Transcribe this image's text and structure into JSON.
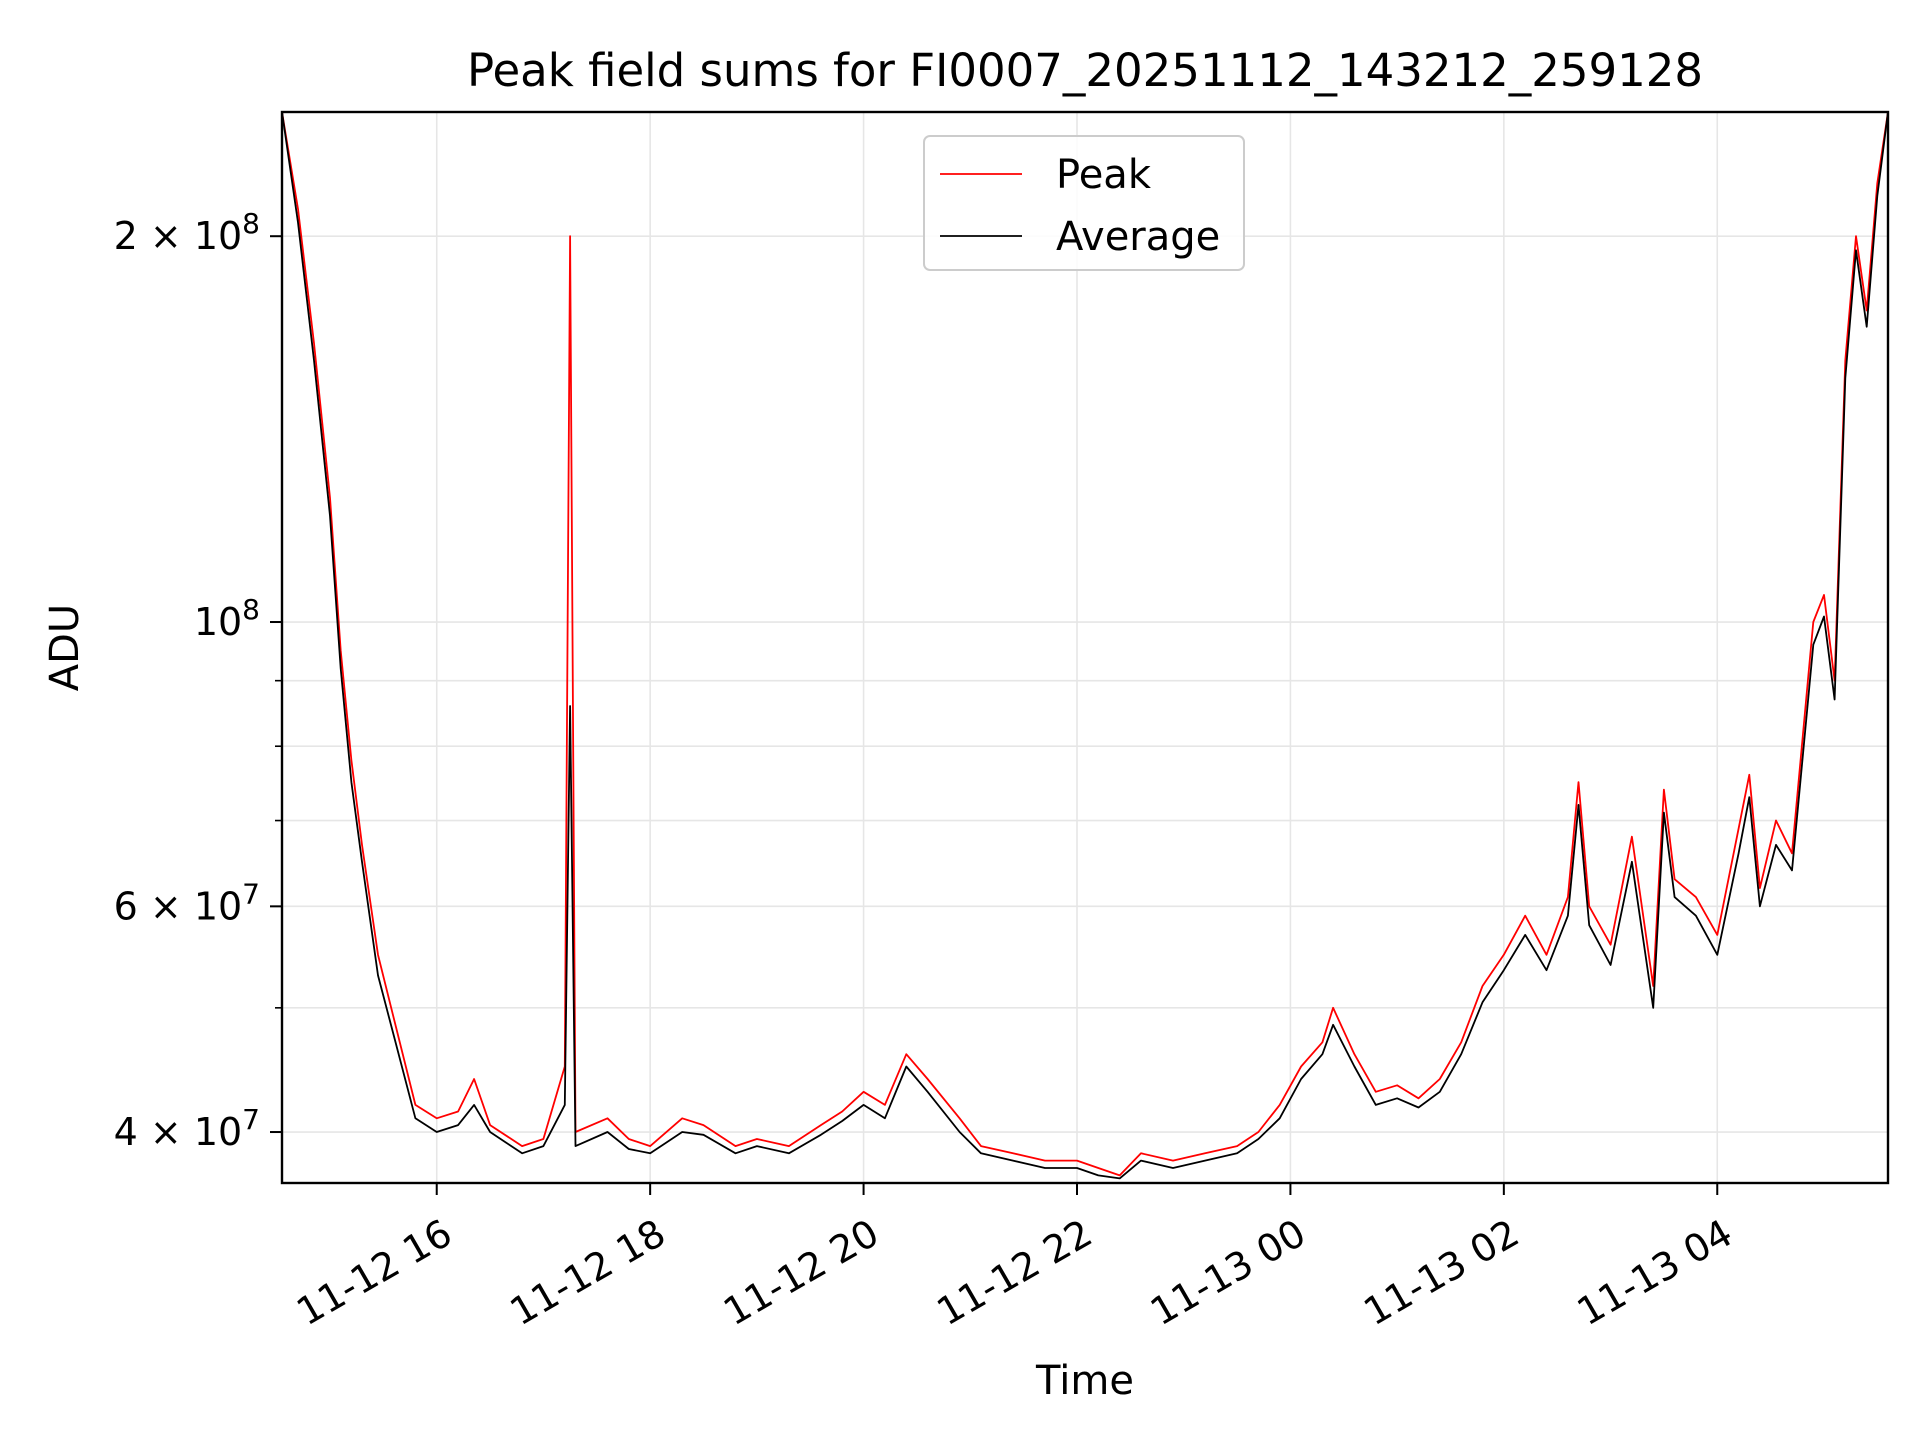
{
  "chart_data": {
    "type": "line",
    "title": "Peak field sums for FI0007_20251112_143212_259128",
    "xlabel": "Time",
    "ylabel": "ADU",
    "yscale": "log",
    "ylim": [
      36500000,
      250000000
    ],
    "x_range_hours": [
      14.55,
      29.6
    ],
    "grid": true,
    "legend_position": "upper center",
    "x_ticks": [
      {
        "hour": 16,
        "label": "11-12 16"
      },
      {
        "hour": 18,
        "label": "11-12 18"
      },
      {
        "hour": 20,
        "label": "11-12 20"
      },
      {
        "hour": 22,
        "label": "11-12 22"
      },
      {
        "hour": 24,
        "label": "11-13 00"
      },
      {
        "hour": 26,
        "label": "11-13 02"
      },
      {
        "hour": 28,
        "label": "11-13 04"
      }
    ],
    "y_major_ticks": [
      {
        "value": 200000000,
        "mantissa": "2",
        "exp": "8"
      },
      {
        "value": 100000000,
        "mantissa": "",
        "exp": "8"
      },
      {
        "value": 60000000,
        "mantissa": "6",
        "exp": "7"
      },
      {
        "value": 40000000,
        "mantissa": "4",
        "exp": "7"
      }
    ],
    "y_minor_ticks": [
      50000000,
      70000000,
      80000000,
      90000000
    ],
    "series": [
      {
        "name": "Peak",
        "color": "#ff0000",
        "x": [
          14.55,
          14.7,
          14.85,
          15.0,
          15.1,
          15.2,
          15.3,
          15.45,
          15.6,
          15.8,
          16.0,
          16.2,
          16.35,
          16.5,
          16.8,
          17.0,
          17.2,
          17.25,
          17.3,
          17.6,
          17.8,
          18.0,
          18.3,
          18.5,
          18.8,
          19.0,
          19.3,
          19.6,
          19.8,
          20.0,
          20.2,
          20.4,
          20.6,
          20.9,
          21.1,
          21.4,
          21.7,
          22.0,
          22.2,
          22.4,
          22.6,
          22.9,
          23.2,
          23.5,
          23.7,
          23.9,
          24.1,
          24.3,
          24.4,
          24.6,
          24.8,
          25.0,
          25.2,
          25.4,
          25.6,
          25.8,
          26.0,
          26.2,
          26.4,
          26.6,
          26.7,
          26.8,
          27.0,
          27.2,
          27.4,
          27.5,
          27.6,
          27.8,
          28.0,
          28.2,
          28.3,
          28.4,
          28.55,
          28.7,
          28.9,
          29.0,
          29.1,
          29.2,
          29.3,
          29.4,
          29.5,
          29.6
        ],
        "y": [
          250000000,
          210000000,
          165000000,
          125000000,
          95000000,
          78000000,
          67000000,
          55000000,
          49000000,
          42000000,
          41000000,
          41500000,
          44000000,
          40500000,
          39000000,
          39500000,
          45000000,
          200000000,
          40000000,
          41000000,
          39500000,
          39000000,
          41000000,
          40500000,
          39000000,
          39500000,
          39000000,
          40500000,
          41500000,
          43000000,
          42000000,
          46000000,
          44000000,
          41000000,
          39000000,
          38500000,
          38000000,
          38000000,
          37500000,
          37000000,
          38500000,
          38000000,
          38500000,
          39000000,
          40000000,
          42000000,
          45000000,
          47000000,
          50000000,
          46000000,
          43000000,
          43500000,
          42500000,
          44000000,
          47000000,
          52000000,
          55000000,
          59000000,
          55000000,
          61000000,
          75000000,
          60000000,
          56000000,
          68000000,
          52000000,
          74000000,
          63000000,
          61000000,
          57000000,
          69000000,
          76000000,
          62000000,
          70000000,
          66000000,
          100000000,
          105000000,
          90000000,
          160000000,
          200000000,
          175000000,
          220000000,
          250000000
        ]
      },
      {
        "name": "Average",
        "color": "#000000",
        "x": [
          14.55,
          14.7,
          14.85,
          15.0,
          15.1,
          15.2,
          15.3,
          15.45,
          15.6,
          15.8,
          16.0,
          16.2,
          16.35,
          16.5,
          16.8,
          17.0,
          17.2,
          17.25,
          17.3,
          17.6,
          17.8,
          18.0,
          18.3,
          18.5,
          18.8,
          19.0,
          19.3,
          19.6,
          19.8,
          20.0,
          20.2,
          20.4,
          20.6,
          20.9,
          21.1,
          21.4,
          21.7,
          22.0,
          22.2,
          22.4,
          22.6,
          22.9,
          23.2,
          23.5,
          23.7,
          23.9,
          24.1,
          24.3,
          24.4,
          24.6,
          24.8,
          25.0,
          25.2,
          25.4,
          25.6,
          25.8,
          26.0,
          26.2,
          26.4,
          26.6,
          26.7,
          26.8,
          27.0,
          27.2,
          27.4,
          27.5,
          27.6,
          27.8,
          28.0,
          28.2,
          28.3,
          28.4,
          28.55,
          28.7,
          28.9,
          29.0,
          29.1,
          29.2,
          29.3,
          29.4,
          29.5,
          29.6
        ],
        "y": [
          250000000,
          205000000,
          160000000,
          121000000,
          92000000,
          75000000,
          65000000,
          53000000,
          47500000,
          41000000,
          40000000,
          40500000,
          42000000,
          40000000,
          38500000,
          39000000,
          42000000,
          86000000,
          39000000,
          40000000,
          38800000,
          38500000,
          40000000,
          39800000,
          38500000,
          39000000,
          38500000,
          39800000,
          40800000,
          42000000,
          41000000,
          45000000,
          43000000,
          40000000,
          38500000,
          38000000,
          37500000,
          37500000,
          37000000,
          36800000,
          38000000,
          37500000,
          38000000,
          38500000,
          39500000,
          41000000,
          44000000,
          46000000,
          48500000,
          45000000,
          42000000,
          42500000,
          41800000,
          43000000,
          46000000,
          50500000,
          53500000,
          57000000,
          53500000,
          59000000,
          72000000,
          58000000,
          54000000,
          65000000,
          50000000,
          71000000,
          61000000,
          59000000,
          55000000,
          66000000,
          73000000,
          60000000,
          67000000,
          64000000,
          96000000,
          101000000,
          87000000,
          155000000,
          195000000,
          170000000,
          215000000,
          250000000
        ]
      }
    ]
  }
}
